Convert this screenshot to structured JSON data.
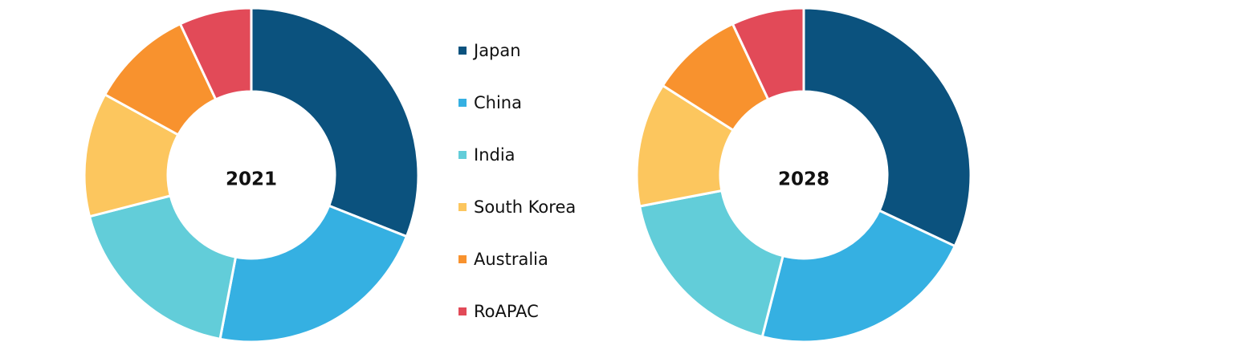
{
  "chart_data": [
    {
      "type": "donut",
      "title": "2021",
      "categories": [
        "Japan",
        "China",
        "India",
        "South Korea",
        "Australia",
        "RoAPAC"
      ],
      "values": [
        31,
        22,
        18,
        12,
        10,
        7
      ],
      "colors": [
        "#0b527e",
        "#35b0e2",
        "#62cdd9",
        "#fcc65e",
        "#f8922e",
        "#e24a58"
      ]
    },
    {
      "type": "donut",
      "title": "2028",
      "categories": [
        "Japan",
        "China",
        "India",
        "South Korea",
        "Australia",
        "RoAPAC"
      ],
      "values": [
        32,
        22,
        18,
        12,
        9,
        7
      ],
      "colors": [
        "#0b527e",
        "#35b0e2",
        "#62cdd9",
        "#fcc65e",
        "#f8922e",
        "#e24a58"
      ]
    }
  ]
}
